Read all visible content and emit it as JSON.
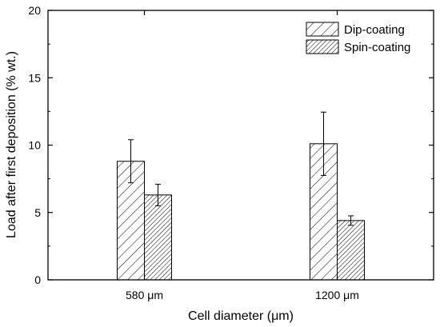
{
  "chart_data": {
    "type": "bar",
    "categories": [
      "580 μm",
      "1200 μm"
    ],
    "series": [
      {
        "name": "Dip-coating",
        "values": [
          8.8,
          10.1
        ],
        "errors": [
          1.6,
          2.35
        ],
        "pattern": "hatch-wide"
      },
      {
        "name": "Spin-coating",
        "values": [
          6.3,
          4.4
        ],
        "errors": [
          0.8,
          0.35
        ],
        "pattern": "hatch-dense"
      }
    ],
    "xlabel": "Cell diameter (μm)",
    "ylabel": "Load after first deposition (% wt.)",
    "ylim": [
      0,
      20
    ],
    "yticks": [
      0,
      5,
      10,
      15,
      20
    ],
    "grid": false,
    "legend_position": "top-right"
  }
}
